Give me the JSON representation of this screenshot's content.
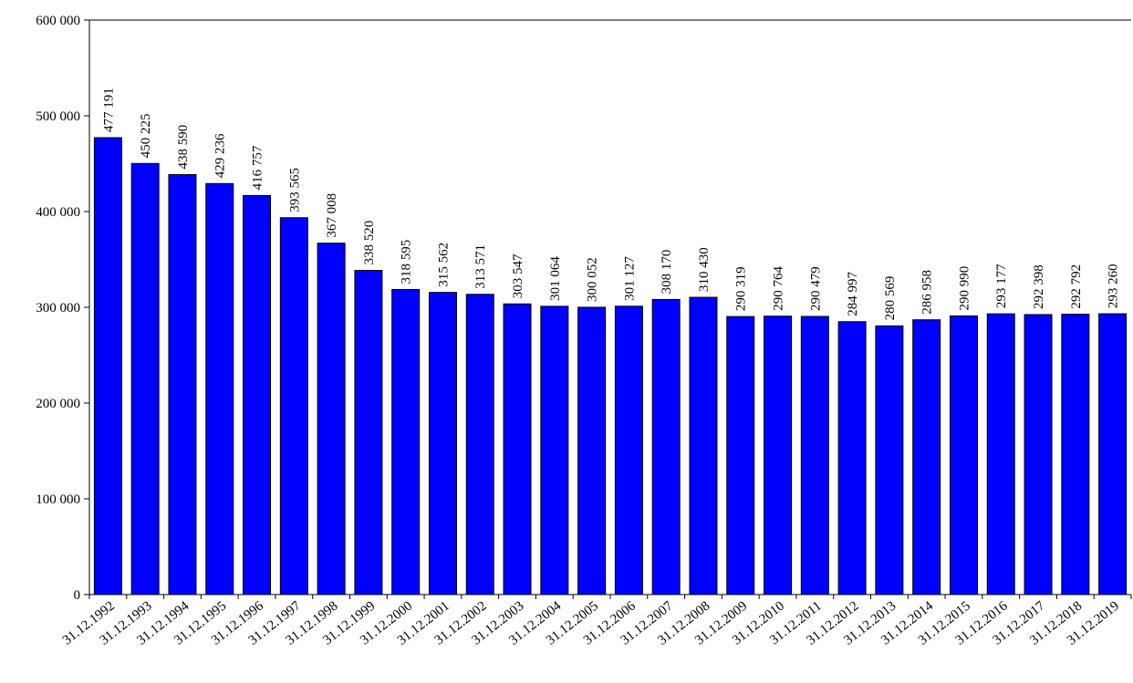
{
  "chart_data": {
    "type": "bar",
    "title": "",
    "xlabel": "",
    "ylabel": "",
    "categories": [
      "31.12.1992",
      "31.12.1993",
      "31.12.1994",
      "31.12.1995",
      "31.12.1996",
      "31.12.1997",
      "31.12.1998",
      "31.12.1999",
      "31.12.2000",
      "31.12.2001",
      "31.12.2002",
      "31.12.2003",
      "31.12.2004",
      "31.12.2005",
      "31.12.2006",
      "31.12.2007",
      "31.12.2008",
      "31.12.2009",
      "31.12.2010",
      "31.12.2011",
      "31.12.2012",
      "31.12.2013",
      "31.12.2014",
      "31.12.2015",
      "31.12.2016",
      "31.12.2017",
      "31.12.2018",
      "31.12.2019"
    ],
    "values": [
      477191,
      450225,
      438590,
      429236,
      416757,
      393565,
      367008,
      338520,
      318595,
      315562,
      313571,
      303547,
      301064,
      300052,
      301127,
      308170,
      310430,
      290319,
      290764,
      290479,
      284997,
      280569,
      286958,
      290990,
      293177,
      292398,
      292792,
      293260
    ],
    "value_labels": [
      "477 191",
      "450 225",
      "438 590",
      "429 236",
      "416 757",
      "393 565",
      "367 008",
      "338 520",
      "318 595",
      "315 562",
      "313 571",
      "303 547",
      "301 064",
      "300 052",
      "301 127",
      "308 170",
      "310 430",
      "290 319",
      "290 764",
      "290 479",
      "284 997",
      "280 569",
      "286 958",
      "290 990",
      "293 177",
      "292 398",
      "292 792",
      "293 260"
    ],
    "ylim": [
      0,
      600000
    ],
    "yticks": [
      0,
      100000,
      200000,
      300000,
      400000,
      500000,
      600000
    ],
    "ytick_labels": [
      "0",
      "100 000",
      "200 000",
      "300 000",
      "400 000",
      "500 000",
      "600 000"
    ],
    "grid": false,
    "legend": "none",
    "bar_color": "#0000ff",
    "bar_edge_color": "#000000"
  }
}
